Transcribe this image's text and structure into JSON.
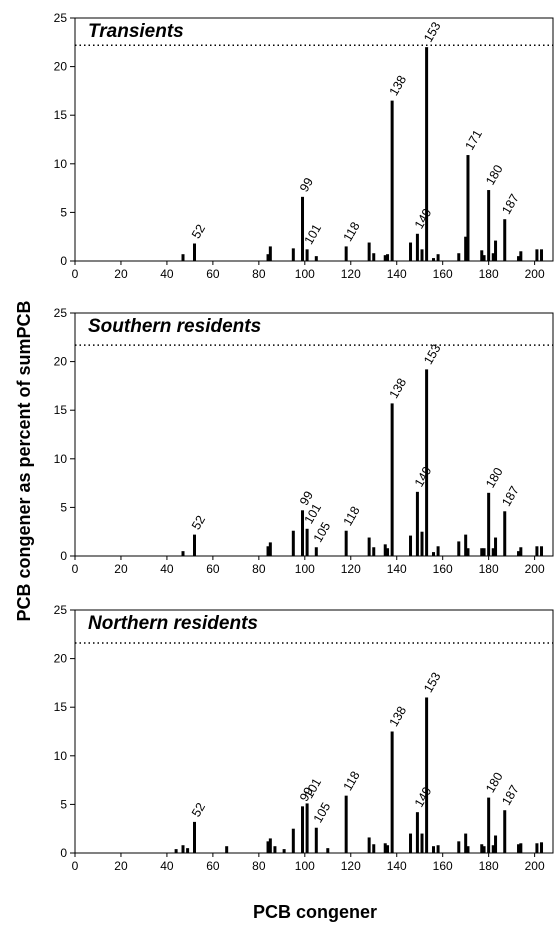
{
  "figure": {
    "ylabel": "PCB congener as percent of sumPCB",
    "xlabel": "PCB congener"
  },
  "chart_data": [
    {
      "type": "bar",
      "title": "Transients",
      "xlim": [
        0,
        208
      ],
      "ylim": [
        0,
        25
      ],
      "xticks": [
        0,
        20,
        40,
        60,
        80,
        100,
        120,
        140,
        160,
        180,
        200
      ],
      "yticks": [
        0,
        5,
        10,
        15,
        20,
        25
      ],
      "reference_line": 22.2,
      "bars": [
        {
          "x": 47,
          "y": 0.7
        },
        {
          "x": 52,
          "y": 1.8
        },
        {
          "x": 84,
          "y": 0.7
        },
        {
          "x": 85,
          "y": 1.5
        },
        {
          "x": 95,
          "y": 1.3
        },
        {
          "x": 99,
          "y": 6.6
        },
        {
          "x": 101,
          "y": 1.2
        },
        {
          "x": 105,
          "y": 0.5
        },
        {
          "x": 118,
          "y": 1.5
        },
        {
          "x": 128,
          "y": 1.9
        },
        {
          "x": 130,
          "y": 0.8
        },
        {
          "x": 135,
          "y": 0.6
        },
        {
          "x": 136,
          "y": 0.7
        },
        {
          "x": 138,
          "y": 16.5
        },
        {
          "x": 146,
          "y": 1.9
        },
        {
          "x": 149,
          "y": 2.8
        },
        {
          "x": 151,
          "y": 1.2
        },
        {
          "x": 153,
          "y": 22.0
        },
        {
          "x": 156,
          "y": 0.3
        },
        {
          "x": 158,
          "y": 0.7
        },
        {
          "x": 167,
          "y": 0.8
        },
        {
          "x": 170,
          "y": 2.5
        },
        {
          "x": 171,
          "y": 10.9
        },
        {
          "x": 177,
          "y": 1.1
        },
        {
          "x": 178,
          "y": 0.6
        },
        {
          "x": 180,
          "y": 7.3
        },
        {
          "x": 182,
          "y": 0.8
        },
        {
          "x": 183,
          "y": 2.1
        },
        {
          "x": 187,
          "y": 4.3
        },
        {
          "x": 193,
          "y": 0.5
        },
        {
          "x": 194,
          "y": 1.0
        },
        {
          "x": 201,
          "y": 1.2
        },
        {
          "x": 203,
          "y": 1.2
        }
      ],
      "labels": [
        {
          "congener": "52",
          "y": 1.8
        },
        {
          "congener": "99",
          "y": 6.6
        },
        {
          "congener": "101",
          "y": 1.2
        },
        {
          "congener": "118",
          "y": 1.5
        },
        {
          "congener": "138",
          "y": 16.5
        },
        {
          "congener": "149",
          "y": 2.8
        },
        {
          "congener": "153",
          "y": 22.0
        },
        {
          "congener": "171",
          "y": 10.9
        },
        {
          "congener": "180",
          "y": 7.3
        },
        {
          "congener": "187",
          "y": 4.3
        }
      ]
    },
    {
      "type": "bar",
      "title": "Southern residents",
      "xlim": [
        0,
        208
      ],
      "ylim": [
        0,
        25
      ],
      "xticks": [
        0,
        20,
        40,
        60,
        80,
        100,
        120,
        140,
        160,
        180,
        200
      ],
      "yticks": [
        0,
        5,
        10,
        15,
        20,
        25
      ],
      "reference_line": 21.7,
      "bars": [
        {
          "x": 47,
          "y": 0.5
        },
        {
          "x": 52,
          "y": 2.2
        },
        {
          "x": 84,
          "y": 1.0
        },
        {
          "x": 85,
          "y": 1.4
        },
        {
          "x": 95,
          "y": 2.6
        },
        {
          "x": 99,
          "y": 4.7
        },
        {
          "x": 101,
          "y": 2.8
        },
        {
          "x": 105,
          "y": 0.9
        },
        {
          "x": 118,
          "y": 2.6
        },
        {
          "x": 128,
          "y": 1.9
        },
        {
          "x": 130,
          "y": 0.9
        },
        {
          "x": 135,
          "y": 1.2
        },
        {
          "x": 136,
          "y": 0.8
        },
        {
          "x": 138,
          "y": 15.7
        },
        {
          "x": 146,
          "y": 2.1
        },
        {
          "x": 149,
          "y": 6.6
        },
        {
          "x": 151,
          "y": 2.5
        },
        {
          "x": 153,
          "y": 19.2
        },
        {
          "x": 156,
          "y": 0.4
        },
        {
          "x": 158,
          "y": 1.0
        },
        {
          "x": 167,
          "y": 1.5
        },
        {
          "x": 170,
          "y": 2.2
        },
        {
          "x": 171,
          "y": 0.8
        },
        {
          "x": 177,
          "y": 0.8
        },
        {
          "x": 178,
          "y": 0.8
        },
        {
          "x": 180,
          "y": 6.5
        },
        {
          "x": 182,
          "y": 0.8
        },
        {
          "x": 183,
          "y": 1.9
        },
        {
          "x": 187,
          "y": 4.6
        },
        {
          "x": 193,
          "y": 0.5
        },
        {
          "x": 194,
          "y": 0.9
        },
        {
          "x": 201,
          "y": 1.0
        },
        {
          "x": 203,
          "y": 1.0
        }
      ],
      "labels": [
        {
          "congener": "52",
          "y": 2.2
        },
        {
          "congener": "99",
          "y": 4.7
        },
        {
          "congener": "101",
          "y": 2.8
        },
        {
          "congener": "105",
          "y": 0.9
        },
        {
          "congener": "118",
          "y": 2.6
        },
        {
          "congener": "138",
          "y": 15.7
        },
        {
          "congener": "149",
          "y": 6.6
        },
        {
          "congener": "153",
          "y": 19.2
        },
        {
          "congener": "180",
          "y": 6.5
        },
        {
          "congener": "187",
          "y": 4.6
        }
      ]
    },
    {
      "type": "bar",
      "title": "Northern residents",
      "xlim": [
        0,
        208
      ],
      "ylim": [
        0,
        25
      ],
      "xticks": [
        0,
        20,
        40,
        60,
        80,
        100,
        120,
        140,
        160,
        180,
        200
      ],
      "yticks": [
        0,
        5,
        10,
        15,
        20,
        25
      ],
      "reference_line": 21.6,
      "bars": [
        {
          "x": 44,
          "y": 0.4
        },
        {
          "x": 47,
          "y": 0.8
        },
        {
          "x": 49,
          "y": 0.5
        },
        {
          "x": 52,
          "y": 3.2
        },
        {
          "x": 66,
          "y": 0.7
        },
        {
          "x": 84,
          "y": 1.2
        },
        {
          "x": 85,
          "y": 1.5
        },
        {
          "x": 87,
          "y": 0.7
        },
        {
          "x": 91,
          "y": 0.4
        },
        {
          "x": 95,
          "y": 2.5
        },
        {
          "x": 99,
          "y": 4.8
        },
        {
          "x": 101,
          "y": 5.1
        },
        {
          "x": 105,
          "y": 2.6
        },
        {
          "x": 110,
          "y": 0.5
        },
        {
          "x": 118,
          "y": 5.9
        },
        {
          "x": 128,
          "y": 1.6
        },
        {
          "x": 130,
          "y": 0.9
        },
        {
          "x": 135,
          "y": 1.0
        },
        {
          "x": 136,
          "y": 0.8
        },
        {
          "x": 138,
          "y": 12.5
        },
        {
          "x": 146,
          "y": 2.0
        },
        {
          "x": 149,
          "y": 4.2
        },
        {
          "x": 151,
          "y": 2.0
        },
        {
          "x": 153,
          "y": 16.0
        },
        {
          "x": 156,
          "y": 0.7
        },
        {
          "x": 158,
          "y": 0.8
        },
        {
          "x": 167,
          "y": 1.2
        },
        {
          "x": 170,
          "y": 2.0
        },
        {
          "x": 171,
          "y": 0.7
        },
        {
          "x": 177,
          "y": 0.9
        },
        {
          "x": 178,
          "y": 0.7
        },
        {
          "x": 180,
          "y": 5.7
        },
        {
          "x": 182,
          "y": 0.8
        },
        {
          "x": 183,
          "y": 1.8
        },
        {
          "x": 187,
          "y": 4.4
        },
        {
          "x": 193,
          "y": 0.9
        },
        {
          "x": 194,
          "y": 1.0
        },
        {
          "x": 201,
          "y": 1.0
        },
        {
          "x": 203,
          "y": 1.1
        }
      ],
      "labels": [
        {
          "congener": "52",
          "y": 3.2
        },
        {
          "congener": "99",
          "y": 4.8
        },
        {
          "congener": "101",
          "y": 5.1
        },
        {
          "congener": "105",
          "y": 2.6
        },
        {
          "congener": "118",
          "y": 5.9
        },
        {
          "congener": "138",
          "y": 12.5
        },
        {
          "congener": "149",
          "y": 4.2
        },
        {
          "congener": "153",
          "y": 16.0
        },
        {
          "congener": "180",
          "y": 5.7
        },
        {
          "congener": "187",
          "y": 4.4
        }
      ]
    }
  ]
}
